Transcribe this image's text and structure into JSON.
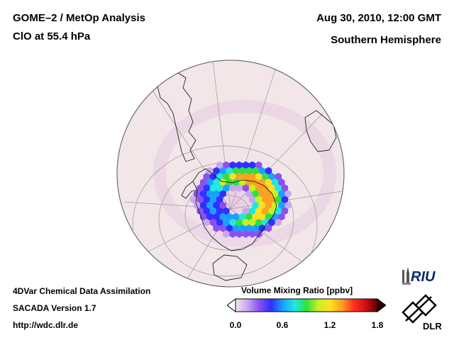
{
  "header": {
    "left_line1": "GOME–2 / MetOp Analysis",
    "left_line2": "ClO at 55.4 hPa",
    "right_line1": "Aug 30, 2010, 12:00 GMT",
    "right_line2": "Southern Hemisphere"
  },
  "footer": {
    "line1": "4DVar Chemical Data Assimilation",
    "line2": "SACADA Version 1.7",
    "line3": "http://wdc.dlr.de"
  },
  "colorbar": {
    "title": "Volume Mixing Ratio [ppbv]",
    "ticks": [
      "0.0",
      "0.6",
      "1.2",
      "1.8"
    ],
    "range": [
      0.0,
      1.8
    ],
    "colors": [
      "#f4e4f2",
      "#c8a8ec",
      "#8c50f0",
      "#3030ff",
      "#1aa0ff",
      "#20e8e0",
      "#30e040",
      "#c8f020",
      "#ffe020",
      "#ffa020",
      "#ff3020",
      "#d01010",
      "#600000"
    ]
  },
  "logos": {
    "riu_text": "RIU",
    "dlr_text": "DLR"
  }
}
